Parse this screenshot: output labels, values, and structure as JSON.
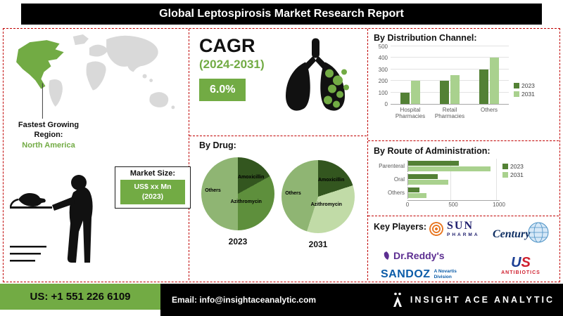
{
  "header": {
    "title": "Global Leptospirosis Market Research Report"
  },
  "map_section": {
    "caption_line1": "Fastest Growing",
    "caption_line2": "Region:",
    "region": "North America"
  },
  "market_size": {
    "label": "Market Size:",
    "value": "US$ xx Mn",
    "year": "(2023)"
  },
  "cagr": {
    "label": "CAGR",
    "period": "(2024-2031)",
    "value": "6.0%"
  },
  "chart_data": [
    {
      "id": "distribution_channel",
      "type": "bar",
      "title": "By Distribution Channel:",
      "categories": [
        "Hospital Pharmacies",
        "Retail Pharmacies",
        "Others"
      ],
      "series": [
        {
          "name": "2023",
          "color": "#538135",
          "values": [
            100,
            200,
            300
          ]
        },
        {
          "name": "2031",
          "color": "#a9d18e",
          "values": [
            200,
            250,
            400
          ]
        }
      ],
      "ylim": [
        0,
        500
      ],
      "yticks": [
        0,
        100,
        200,
        300,
        400,
        500
      ],
      "grid": true,
      "legend_position": "right"
    },
    {
      "id": "drug",
      "type": "pie",
      "title": "By Drug:",
      "pies": [
        {
          "year": "2023",
          "labels": [
            "Amoxicillin",
            "Azithromycin",
            "Others"
          ],
          "values": [
            17,
            33,
            50
          ],
          "colors": [
            "#33561f",
            "#5e8f3c",
            "#8fb573"
          ]
        },
        {
          "year": "2031",
          "labels": [
            "Amoxicillin",
            "Azithromycin",
            "Others"
          ],
          "values": [
            20,
            35,
            45
          ],
          "colors": [
            "#33561f",
            "#c1dba7",
            "#8fb573"
          ]
        }
      ]
    },
    {
      "id": "route_of_administration",
      "type": "bar",
      "orientation": "horizontal",
      "title": "By Route of Administration:",
      "categories": [
        "Parenteral",
        "Oral",
        "Others"
      ],
      "series": [
        {
          "name": "2023",
          "color": "#538135",
          "values": [
            550,
            320,
            120
          ]
        },
        {
          "name": "2031",
          "color": "#a9d18e",
          "values": [
            900,
            440,
            200
          ]
        }
      ],
      "xlim": [
        0,
        1000
      ],
      "xticks": [
        0,
        500,
        1000
      ],
      "grid": true,
      "legend_position": "right"
    }
  ],
  "key_players": {
    "label": "Key Players:",
    "sun_pharma": {
      "name": "SUN",
      "sub": "PHARMA"
    },
    "century": {
      "name": "Century"
    },
    "dr_reddys": {
      "name": "Dr.Reddy's"
    },
    "sandoz": {
      "name": "SANDOZ",
      "sub": "A Novartis Division"
    },
    "us_antibiotics": {
      "letter_u": "U",
      "letter_s": "S",
      "sub": "ANTIBIOTICS"
    }
  },
  "footer": {
    "phone": "US: +1 551 226 6109",
    "email": "Email: info@insightaceanalytic.com",
    "brand": "INSIGHT ACE ANALYTIC"
  },
  "colors": {
    "accent_green": "#72ab44",
    "dark_green": "#538135",
    "light_green": "#a9d18e",
    "divider_red": "#c00000",
    "header_black": "#000000"
  }
}
